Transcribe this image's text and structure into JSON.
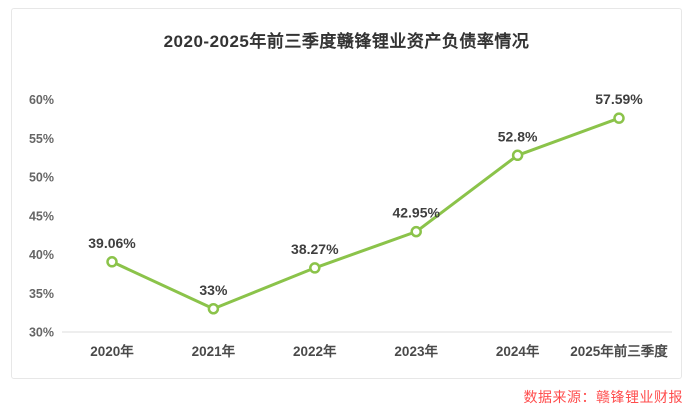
{
  "title": "2020-2025年前三季度赣锋锂业资产负债率情况",
  "source": "数据来源：赣锋锂业财报",
  "colors": {
    "line": "#8bc34a",
    "marker_fill": "#ffffff",
    "value_label": "#3f3f3f",
    "tick_label": "#666666",
    "x_label": "#4a4a4a",
    "axis_line": "#dddddd",
    "title_text": "#333333",
    "source_text": "#ff4d4d",
    "card_border": "#e7e7e7"
  },
  "chart_data": {
    "type": "line",
    "title": "2020-2025年前三季度赣锋锂业资产负债率情况",
    "categories": [
      "2020年",
      "2021年",
      "2022年",
      "2023年",
      "2024年",
      "2025年前三季度"
    ],
    "values": [
      39.06,
      33,
      38.27,
      42.95,
      52.8,
      57.59
    ],
    "point_labels": [
      "39.06%",
      "33%",
      "38.27%",
      "42.95%",
      "52.8%",
      "57.59%"
    ],
    "xlabel": "",
    "ylabel": "",
    "ylim": [
      30,
      60
    ],
    "ytick_step": 5,
    "ytick_labels": [
      "30%",
      "35%",
      "40%",
      "45%",
      "50%",
      "55%",
      "60%"
    ],
    "grid": false,
    "legend": false,
    "marker": "open-circle",
    "note": "数据来源：赣锋锂业财报"
  }
}
